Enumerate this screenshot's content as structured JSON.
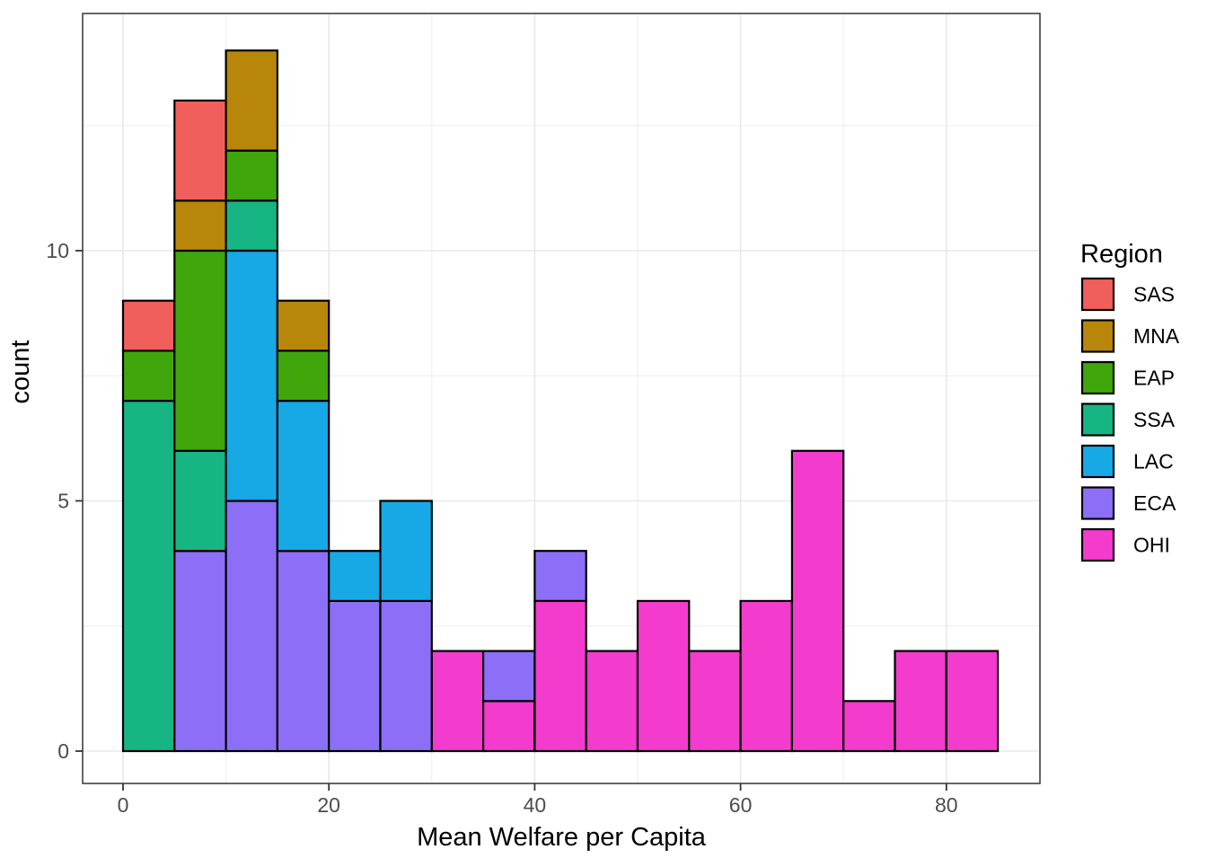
{
  "chart_data": {
    "type": "bar",
    "subtype": "stacked-histogram",
    "title": "",
    "xlabel": "Mean Welfare per Capita",
    "ylabel": "count",
    "xlim": [
      -4.25,
      89.25
    ],
    "ylim": [
      -0.7,
      14.7
    ],
    "grid": "on",
    "x_ticks": [
      0,
      20,
      40,
      60,
      80
    ],
    "x_minor": [
      10,
      30,
      50,
      70
    ],
    "y_ticks": [
      0,
      5,
      10
    ],
    "y_minor": [
      2.5,
      7.5,
      12.5
    ],
    "bin_width": 5,
    "stack_order_bottom_to_top": [
      "OHI",
      "ECA",
      "LAC",
      "SSA",
      "EAP",
      "MNA",
      "SAS"
    ],
    "legend": {
      "title": "Region",
      "position": "right",
      "entries": [
        {
          "label": "SAS",
          "color": "#F15F5C"
        },
        {
          "label": "MNA",
          "color": "#B8860B"
        },
        {
          "label": "EAP",
          "color": "#3FA60B"
        },
        {
          "label": "SSA",
          "color": "#16B583"
        },
        {
          "label": "LAC",
          "color": "#17A8E6"
        },
        {
          "label": "ECA",
          "color": "#8C6FF6"
        },
        {
          "label": "OHI",
          "color": "#F33BCD"
        }
      ]
    },
    "bars": [
      {
        "bin_start": 0,
        "bin_end": 5,
        "total": 9,
        "segments": [
          {
            "region": "SSA",
            "count": 7
          },
          {
            "region": "EAP",
            "count": 1
          },
          {
            "region": "SAS",
            "count": 1
          }
        ]
      },
      {
        "bin_start": 5,
        "bin_end": 10,
        "total": 13,
        "segments": [
          {
            "region": "ECA",
            "count": 4
          },
          {
            "region": "SSA",
            "count": 2
          },
          {
            "region": "EAP",
            "count": 4
          },
          {
            "region": "MNA",
            "count": 1
          },
          {
            "region": "SAS",
            "count": 2
          }
        ]
      },
      {
        "bin_start": 10,
        "bin_end": 15,
        "total": 14,
        "segments": [
          {
            "region": "ECA",
            "count": 5
          },
          {
            "region": "LAC",
            "count": 5
          },
          {
            "region": "SSA",
            "count": 1
          },
          {
            "region": "EAP",
            "count": 1
          },
          {
            "region": "MNA",
            "count": 2
          }
        ]
      },
      {
        "bin_start": 15,
        "bin_end": 20,
        "total": 9,
        "segments": [
          {
            "region": "ECA",
            "count": 4
          },
          {
            "region": "LAC",
            "count": 3
          },
          {
            "region": "EAP",
            "count": 1
          },
          {
            "region": "MNA",
            "count": 1
          }
        ]
      },
      {
        "bin_start": 20,
        "bin_end": 25,
        "total": 4,
        "segments": [
          {
            "region": "ECA",
            "count": 3
          },
          {
            "region": "LAC",
            "count": 1
          }
        ]
      },
      {
        "bin_start": 25,
        "bin_end": 30,
        "total": 5,
        "segments": [
          {
            "region": "ECA",
            "count": 3
          },
          {
            "region": "LAC",
            "count": 2
          }
        ]
      },
      {
        "bin_start": 30,
        "bin_end": 35,
        "total": 2,
        "segments": [
          {
            "region": "OHI",
            "count": 2
          }
        ]
      },
      {
        "bin_start": 35,
        "bin_end": 40,
        "total": 2,
        "segments": [
          {
            "region": "OHI",
            "count": 1
          },
          {
            "region": "ECA",
            "count": 1
          }
        ]
      },
      {
        "bin_start": 40,
        "bin_end": 45,
        "total": 4,
        "segments": [
          {
            "region": "OHI",
            "count": 3
          },
          {
            "region": "ECA",
            "count": 1
          }
        ]
      },
      {
        "bin_start": 45,
        "bin_end": 50,
        "total": 2,
        "segments": [
          {
            "region": "OHI",
            "count": 2
          }
        ]
      },
      {
        "bin_start": 50,
        "bin_end": 55,
        "total": 3,
        "segments": [
          {
            "region": "OHI",
            "count": 3
          }
        ]
      },
      {
        "bin_start": 55,
        "bin_end": 60,
        "total": 2,
        "segments": [
          {
            "region": "OHI",
            "count": 2
          }
        ]
      },
      {
        "bin_start": 60,
        "bin_end": 65,
        "total": 3,
        "segments": [
          {
            "region": "OHI",
            "count": 3
          }
        ]
      },
      {
        "bin_start": 65,
        "bin_end": 70,
        "total": 6,
        "segments": [
          {
            "region": "OHI",
            "count": 6
          }
        ]
      },
      {
        "bin_start": 70,
        "bin_end": 75,
        "total": 1,
        "segments": [
          {
            "region": "OHI",
            "count": 1
          }
        ]
      },
      {
        "bin_start": 75,
        "bin_end": 80,
        "total": 2,
        "segments": [
          {
            "region": "OHI",
            "count": 2
          }
        ]
      },
      {
        "bin_start": 80,
        "bin_end": 85,
        "total": 2,
        "segments": [
          {
            "region": "OHI",
            "count": 2
          }
        ]
      }
    ],
    "style": {
      "figure_bg": "#FFFFFF",
      "panel_bg": "#FFFFFF",
      "panel_border": "#333333",
      "grid_major": "#E8E8E8",
      "grid_minor": "#F0F0F0",
      "bar_stroke": "#000000",
      "tick_color": "#333333",
      "tick_label_color": "#4D4D4D",
      "axis_title_color": "#000000"
    }
  }
}
